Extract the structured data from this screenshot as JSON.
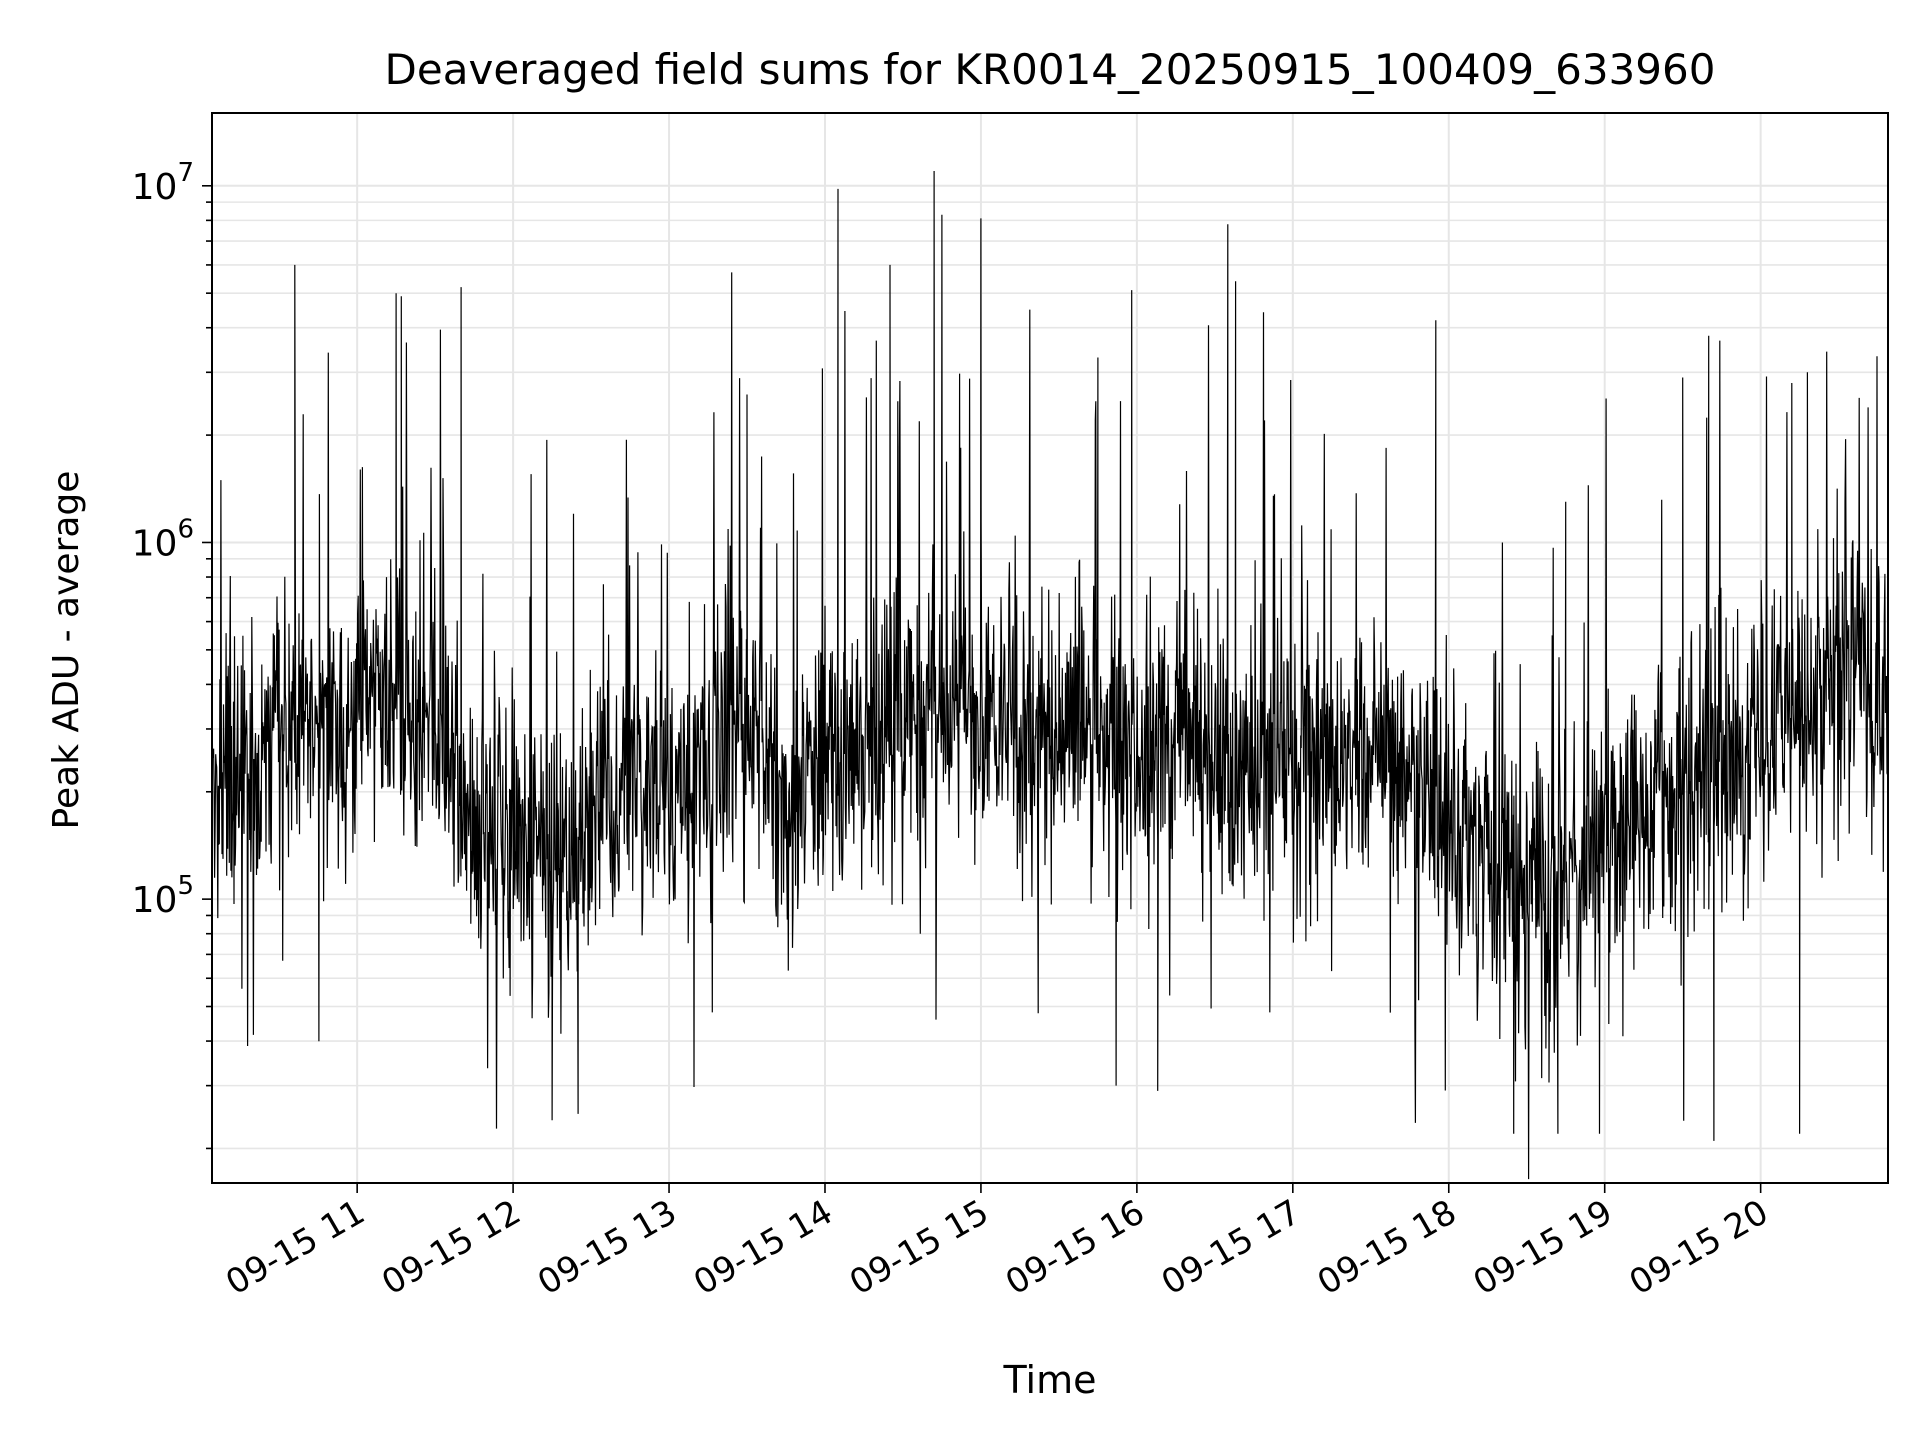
{
  "chart_data": {
    "type": "line",
    "title": "Deaveraged field sums for KR0014_20250915_100409_633960",
    "xlabel": "Time",
    "ylabel": "Peak ADU - average",
    "x_range": [
      "2025-09-15 10:04:09",
      "2025-09-15 20:49:00"
    ],
    "y_scale": "log",
    "ylim": [
      16000,
      16000000
    ],
    "grid": true,
    "line_color": "#000000",
    "x_ticks": [
      {
        "value": "2025-09-15 11:00",
        "label": "09-15 11"
      },
      {
        "value": "2025-09-15 12:00",
        "label": "09-15 12"
      },
      {
        "value": "2025-09-15 13:00",
        "label": "09-15 13"
      },
      {
        "value": "2025-09-15 14:00",
        "label": "09-15 14"
      },
      {
        "value": "2025-09-15 15:00",
        "label": "09-15 15"
      },
      {
        "value": "2025-09-15 16:00",
        "label": "09-15 16"
      },
      {
        "value": "2025-09-15 17:00",
        "label": "09-15 17"
      },
      {
        "value": "2025-09-15 18:00",
        "label": "09-15 18"
      },
      {
        "value": "2025-09-15 19:00",
        "label": "09-15 19"
      },
      {
        "value": "2025-09-15 20:00",
        "label": "09-15 20"
      }
    ],
    "y_ticks": [
      {
        "value": 100000,
        "base": "10",
        "exp": "5"
      },
      {
        "value": 1000000,
        "base": "10",
        "exp": "6"
      },
      {
        "value": 10000000,
        "base": "10",
        "exp": "7"
      }
    ],
    "baseline": [
      {
        "x": "2025-09-15 10:04",
        "y": 200000
      },
      {
        "x": "2025-09-15 10:30",
        "y": 300000
      },
      {
        "x": "2025-09-15 11:00",
        "y": 330000
      },
      {
        "x": "2025-09-15 11:30",
        "y": 340000
      },
      {
        "x": "2025-09-15 11:40",
        "y": 170000
      },
      {
        "x": "2025-09-15 12:00",
        "y": 160000
      },
      {
        "x": "2025-09-15 12:20",
        "y": 120000
      },
      {
        "x": "2025-09-15 12:45",
        "y": 230000
      },
      {
        "x": "2025-09-15 13:00",
        "y": 180000
      },
      {
        "x": "2025-09-15 13:25",
        "y": 330000
      },
      {
        "x": "2025-09-15 13:45",
        "y": 180000
      },
      {
        "x": "2025-09-15 14:00",
        "y": 230000
      },
      {
        "x": "2025-09-15 14:30",
        "y": 360000
      },
      {
        "x": "2025-09-15 15:00",
        "y": 340000
      },
      {
        "x": "2025-09-15 15:30",
        "y": 300000
      },
      {
        "x": "2025-09-15 16:00",
        "y": 240000
      },
      {
        "x": "2025-09-15 16:30",
        "y": 270000
      },
      {
        "x": "2025-09-15 17:00",
        "y": 260000
      },
      {
        "x": "2025-09-15 17:30",
        "y": 260000
      },
      {
        "x": "2025-09-15 17:50",
        "y": 210000
      },
      {
        "x": "2025-09-15 18:15",
        "y": 130000
      },
      {
        "x": "2025-09-15 18:40",
        "y": 100000
      },
      {
        "x": "2025-09-15 19:00",
        "y": 150000
      },
      {
        "x": "2025-09-15 19:30",
        "y": 210000
      },
      {
        "x": "2025-09-15 20:00",
        "y": 270000
      },
      {
        "x": "2025-09-15 20:20",
        "y": 400000
      },
      {
        "x": "2025-09-15 20:49",
        "y": 450000
      }
    ],
    "spikes": [
      {
        "x": "2025-09-15 10:36",
        "y": 6000000
      },
      {
        "x": "2025-09-15 11:15",
        "y": 5000000
      },
      {
        "x": "2025-09-15 11:17",
        "y": 4900000
      },
      {
        "x": "2025-09-15 11:40",
        "y": 5200000
      },
      {
        "x": "2025-09-15 13:30",
        "y": 2600000
      },
      {
        "x": "2025-09-15 14:05",
        "y": 9800000
      },
      {
        "x": "2025-09-15 14:25",
        "y": 6000000
      },
      {
        "x": "2025-09-15 14:42",
        "y": 11000000
      },
      {
        "x": "2025-09-15 14:45",
        "y": 8300000
      },
      {
        "x": "2025-09-15 15:00",
        "y": 8100000
      },
      {
        "x": "2025-09-15 15:45",
        "y": 3300000
      },
      {
        "x": "2025-09-15 15:58",
        "y": 5100000
      },
      {
        "x": "2025-09-15 16:35",
        "y": 7800000
      },
      {
        "x": "2025-09-15 16:38",
        "y": 5400000
      },
      {
        "x": "2025-09-15 17:55",
        "y": 4200000
      },
      {
        "x": "2025-09-15 18:45",
        "y": 1300000
      },
      {
        "x": "2025-09-15 19:30",
        "y": 2900000
      },
      {
        "x": "2025-09-15 19:40",
        "y": 3800000
      },
      {
        "x": "2025-09-15 20:12",
        "y": 2800000
      },
      {
        "x": "2025-09-15 20:18",
        "y": 3000000
      }
    ],
    "dips": [
      {
        "x": "2025-09-15 12:15",
        "y": 24000
      },
      {
        "x": "2025-09-15 12:25",
        "y": 25000
      },
      {
        "x": "2025-09-15 15:52",
        "y": 30000
      },
      {
        "x": "2025-09-15 16:08",
        "y": 29000
      },
      {
        "x": "2025-09-15 18:25",
        "y": 22000
      },
      {
        "x": "2025-09-15 18:42",
        "y": 22000
      },
      {
        "x": "2025-09-15 18:58",
        "y": 22000
      },
      {
        "x": "2025-09-15 19:42",
        "y": 21000
      },
      {
        "x": "2025-09-15 20:15",
        "y": 22000
      }
    ]
  }
}
